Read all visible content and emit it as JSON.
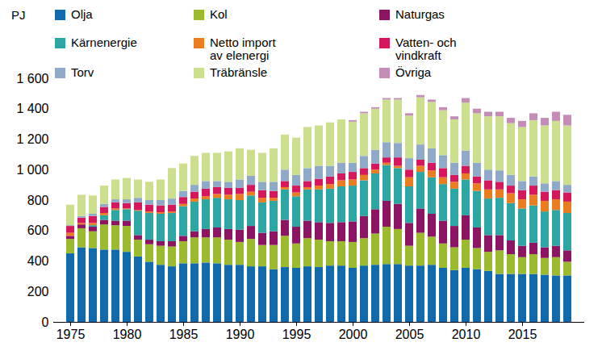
{
  "chart_data": {
    "type": "bar",
    "stacked": true,
    "ylabel": "PJ",
    "legend": "top",
    "grid": false,
    "x": [
      1975,
      1976,
      1977,
      1978,
      1979,
      1980,
      1981,
      1982,
      1983,
      1984,
      1985,
      1986,
      1987,
      1988,
      1989,
      1990,
      1991,
      1992,
      1993,
      1994,
      1995,
      1996,
      1997,
      1998,
      1999,
      2000,
      2001,
      2002,
      2003,
      2004,
      2005,
      2006,
      2007,
      2008,
      2009,
      2010,
      2011,
      2012,
      2013,
      2014,
      2015,
      2016,
      2017,
      2018,
      2019
    ],
    "xticks": [
      1975,
      1980,
      1985,
      1990,
      1995,
      2000,
      2005,
      2010,
      2015
    ],
    "ylim": [
      0,
      1600
    ],
    "yticks": [
      0,
      200,
      400,
      600,
      800,
      {
        "value": 1000,
        "label": "1 000"
      },
      {
        "value": 1200,
        "label": "1 200"
      },
      {
        "value": 1400,
        "label": "1 400"
      },
      {
        "value": 1600,
        "label": "1 600"
      }
    ],
    "series": [
      {
        "name": "Olja",
        "color": "#0f6aae",
        "values": [
          450,
          490,
          485,
          475,
          475,
          460,
          430,
          395,
          375,
          365,
          385,
          385,
          390,
          385,
          375,
          375,
          365,
          365,
          345,
          360,
          355,
          365,
          360,
          370,
          370,
          355,
          370,
          375,
          380,
          380,
          370,
          370,
          375,
          355,
          340,
          355,
          345,
          335,
          315,
          315,
          315,
          315,
          310,
          305,
          305
        ]
      },
      {
        "name": "Kol",
        "color": "#9bba2d",
        "values": [
          95,
          125,
          110,
          165,
          160,
          170,
          110,
          115,
          125,
          130,
          145,
          170,
          165,
          170,
          165,
          150,
          180,
          140,
          160,
          205,
          160,
          185,
          180,
          160,
          160,
          170,
          180,
          205,
          245,
          230,
          130,
          215,
          185,
          160,
          150,
          185,
          140,
          125,
          155,
          130,
          110,
          130,
          110,
          120,
          90
        ]
      },
      {
        "name": "Naturgas",
        "color": "#8c1462",
        "values": [
          20,
          25,
          30,
          30,
          30,
          35,
          30,
          30,
          30,
          35,
          35,
          40,
          55,
          65,
          70,
          80,
          85,
          80,
          90,
          105,
          110,
          115,
          115,
          120,
          125,
          135,
          145,
          160,
          170,
          165,
          150,
          160,
          150,
          150,
          140,
          160,
          135,
          110,
          100,
          90,
          75,
          75,
          70,
          75,
          75
        ]
      },
      {
        "name": "Kärnenergie",
        "color": "#2ba6a2",
        "values": [
          0,
          0,
          10,
          30,
          70,
          75,
          160,
          175,
          180,
          185,
          195,
          195,
          195,
          195,
          195,
          195,
          200,
          200,
          200,
          200,
          200,
          205,
          215,
          225,
          235,
          235,
          235,
          235,
          235,
          235,
          240,
          240,
          240,
          240,
          245,
          235,
          240,
          240,
          245,
          245,
          245,
          245,
          235,
          235,
          245
        ]
      },
      {
        "name": "Netto import av elenergi",
        "color": "#e97d1f",
        "values": [
          20,
          10,
          15,
          15,
          10,
          5,
          5,
          10,
          10,
          10,
          15,
          20,
          20,
          25,
          30,
          40,
          25,
          30,
          20,
          15,
          25,
          15,
          25,
          30,
          40,
          40,
          35,
          25,
          15,
          15,
          60,
          40,
          45,
          45,
          45,
          40,
          50,
          60,
          55,
          65,
          60,
          70,
          70,
          70,
          75
        ]
      },
      {
        "name": "Vatten- och vindkraft",
        "color": "#d5175c",
        "values": [
          45,
          35,
          45,
          40,
          40,
          35,
          50,
          45,
          45,
          45,
          45,
          45,
          50,
          45,
          45,
          40,
          45,
          50,
          45,
          40,
          45,
          40,
          45,
          50,
          45,
          50,
          45,
          40,
          35,
          55,
          50,
          40,
          50,
          60,
          45,
          50,
          45,
          60,
          50,
          50,
          60,
          60,
          60,
          60,
          60
        ]
      },
      {
        "name": "Torv",
        "color": "#8faac9",
        "values": [
          5,
          10,
          15,
          20,
          20,
          25,
          30,
          30,
          35,
          40,
          40,
          45,
          50,
          40,
          40,
          55,
          60,
          55,
          60,
          75,
          70,
          85,
          85,
          70,
          70,
          60,
          80,
          90,
          100,
          95,
          75,
          100,
          95,
          85,
          80,
          100,
          90,
          70,
          75,
          70,
          60,
          60,
          55,
          60,
          50
        ]
      },
      {
        "name": "Träbränsle",
        "color": "#cbdf8c",
        "values": [
          135,
          140,
          120,
          120,
          130,
          140,
          120,
          120,
          135,
          200,
          180,
          190,
          185,
          185,
          200,
          205,
          170,
          190,
          220,
          230,
          245,
          270,
          265,
          285,
          285,
          270,
          280,
          270,
          280,
          285,
          280,
          310,
          305,
          295,
          285,
          315,
          325,
          350,
          355,
          340,
          355,
          370,
          380,
          395,
          390
        ]
      },
      {
        "name": "Övriga",
        "color": "#c58cb8",
        "values": [
          0,
          0,
          0,
          0,
          0,
          0,
          0,
          0,
          0,
          0,
          0,
          0,
          0,
          0,
          0,
          0,
          0,
          0,
          0,
          0,
          0,
          0,
          0,
          0,
          0,
          10,
          10,
          10,
          10,
          10,
          15,
          15,
          15,
          20,
          20,
          30,
          30,
          30,
          30,
          35,
          40,
          45,
          50,
          60,
          70
        ]
      }
    ]
  }
}
